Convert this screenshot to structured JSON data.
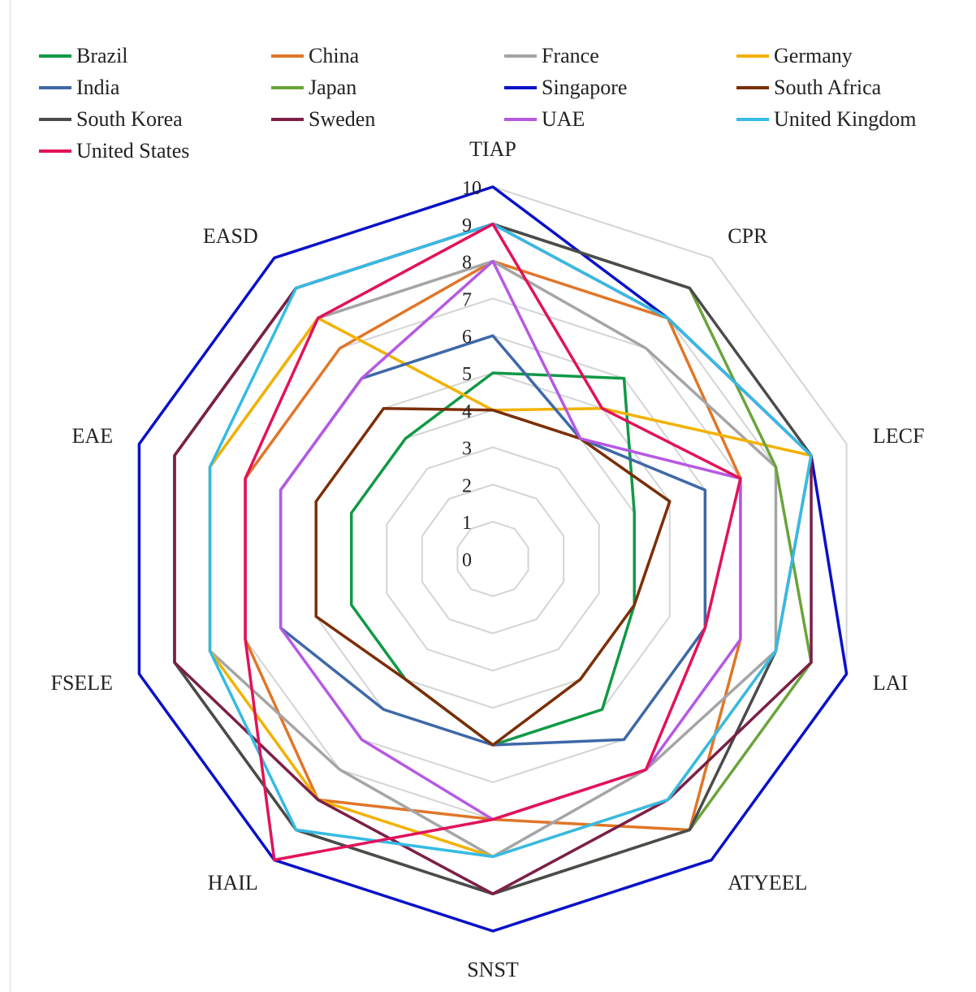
{
  "chart_data": {
    "type": "radar",
    "title": "",
    "categories": [
      "TIAP",
      "CPR",
      "LECF",
      "LAI",
      "ATYEEL",
      "SNST",
      "HAIL",
      "FSELE",
      "EAE",
      "EASD"
    ],
    "rlim": [
      0,
      10
    ],
    "ticks": [
      "0",
      "1",
      "2",
      "3",
      "4",
      "5",
      "6",
      "7",
      "8",
      "9",
      "10"
    ],
    "grid": true,
    "legend_position": "top",
    "series": [
      {
        "name": "Brazil",
        "color": "#119946",
        "values": [
          5,
          6,
          4,
          4,
          5,
          5,
          4,
          4,
          4,
          4
        ]
      },
      {
        "name": "China",
        "color": "#e07628",
        "values": [
          8,
          8,
          7,
          7,
          9,
          7,
          8,
          7,
          7,
          7
        ]
      },
      {
        "name": "France",
        "color": "#a5a5a5",
        "values": [
          8,
          7,
          8,
          8,
          7,
          8,
          7,
          8,
          8,
          8
        ]
      },
      {
        "name": "Germany",
        "color": "#f2b200",
        "values": [
          4,
          5,
          9,
          8,
          8,
          8,
          8,
          8,
          8,
          8
        ]
      },
      {
        "name": "India",
        "color": "#3e68a8",
        "values": [
          6,
          4,
          6,
          6,
          6,
          5,
          5,
          6,
          6,
          6
        ]
      },
      {
        "name": "Japan",
        "color": "#6aa43a",
        "values": [
          9,
          9,
          8,
          9,
          9,
          9,
          9,
          9,
          9,
          9
        ]
      },
      {
        "name": "Singapore",
        "color": "#0a11c8",
        "values": [
          10,
          8,
          9,
          10,
          10,
          10,
          10,
          10,
          10,
          10
        ]
      },
      {
        "name": "South Africa",
        "color": "#7b2e06",
        "values": [
          4,
          4,
          5,
          4,
          4,
          5,
          4,
          5,
          5,
          5
        ]
      },
      {
        "name": "South Korea",
        "color": "#4b4b4b",
        "values": [
          9,
          9,
          9,
          8,
          9,
          9,
          9,
          9,
          9,
          9
        ]
      },
      {
        "name": "Sweden",
        "color": "#7c1f47",
        "values": [
          9,
          8,
          9,
          9,
          8,
          9,
          8,
          9,
          9,
          9
        ]
      },
      {
        "name": "UAE",
        "color": "#b659e3",
        "values": [
          8,
          4,
          7,
          7,
          7,
          7,
          6,
          6,
          6,
          6
        ]
      },
      {
        "name": "United Kingdom",
        "color": "#35bbe6",
        "values": [
          9,
          8,
          9,
          8,
          8,
          8,
          9,
          8,
          8,
          9
        ]
      },
      {
        "name": "United States",
        "color": "#e2125a",
        "values": [
          9,
          5,
          7,
          6,
          7,
          7,
          10,
          7,
          7,
          8
        ]
      }
    ]
  }
}
